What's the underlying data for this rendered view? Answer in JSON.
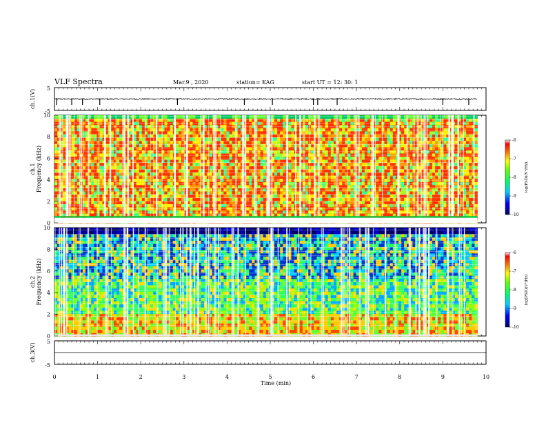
{
  "header": {
    "title": "VLF Spectra",
    "date": "Mar.9 , 2020",
    "station": "station= KAG",
    "start": "start UT = 12: 30: 1"
  },
  "chart_data": [
    {
      "type": "line",
      "panel": "ch1-waveform",
      "ylabel": "ch.1(V)",
      "ylim": [
        -5,
        5
      ],
      "yticks": [
        "5",
        "-5"
      ],
      "baseline": 0,
      "spikes_min": [
        0.05,
        0.4,
        0.65,
        1.05,
        2.85,
        4.4,
        5.05,
        6.0,
        6.1,
        6.55,
        9.0,
        9.6
      ],
      "xlim": [
        0,
        10
      ]
    },
    {
      "type": "heatmap",
      "panel": "ch1-spectrogram",
      "ylabel": "ch.1\nFrequency (kHz)",
      "ylim": [
        0,
        10
      ],
      "yticks": [
        "0",
        "2",
        "4",
        "6",
        "8",
        "10"
      ],
      "xlim": [
        0,
        9.8
      ],
      "colorbar": {
        "label": "log(PSD)(V²/Hz)",
        "ticks": [
          "-6",
          "-7",
          "-8",
          "-9",
          "-10"
        ],
        "range": [
          -10,
          -6
        ]
      }
    },
    {
      "type": "heatmap",
      "panel": "ch2-spectrogram",
      "ylabel": "ch.2\nFrequency (kHz)",
      "ylim": [
        0,
        10
      ],
      "yticks": [
        "0",
        "2",
        "4",
        "6",
        "8",
        "10"
      ],
      "xlim": [
        0,
        9.8
      ],
      "colorbar": {
        "label": "log(PSD)(V²/Hz)",
        "ticks": [
          "-6",
          "-7",
          "-8",
          "-9",
          "-10"
        ],
        "range": [
          -10,
          -6
        ]
      }
    },
    {
      "type": "line",
      "panel": "ch3-waveform",
      "ylabel": "ch.3(V)",
      "ylim": [
        -5,
        5
      ],
      "yticks": [
        "5",
        "-5"
      ],
      "xlim": [
        0,
        10
      ]
    }
  ],
  "xaxis": {
    "label": "Time (min)",
    "ticks": [
      "0",
      "1",
      "2",
      "3",
      "4",
      "5",
      "6",
      "7",
      "8",
      "9",
      "10"
    ]
  }
}
